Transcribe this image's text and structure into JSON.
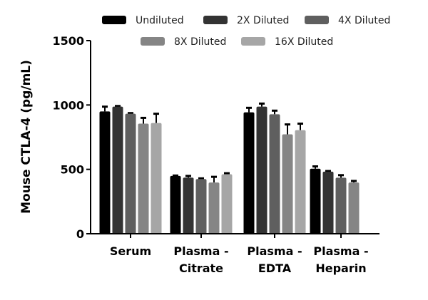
{
  "chart_data": {
    "type": "bar",
    "title": "",
    "xlabel": "",
    "ylabel": "Mouse CTLA-4 (pg/mL)",
    "ylim": [
      0,
      1500
    ],
    "yticks": [
      0,
      500,
      1000,
      1500
    ],
    "grid": false,
    "legend_placement": "top",
    "categories": [
      {
        "line1": "Serum",
        "line2": ""
      },
      {
        "line1": "Plasma -",
        "line2": "Citrate"
      },
      {
        "line1": "Plasma -",
        "line2": "EDTA"
      },
      {
        "line1": "Plasma -",
        "line2": "Heparin"
      }
    ],
    "series": [
      {
        "name": "Undiluted",
        "color": "#000000",
        "values": [
          950,
          449,
          943,
          505
        ],
        "errors": [
          37,
          3,
          35,
          18
        ]
      },
      {
        "name": "2X Diluted",
        "color": "#333333",
        "values": [
          987,
          436,
          987,
          482
        ],
        "errors": [
          5,
          13,
          24,
          5
        ]
      },
      {
        "name": "4X Diluted",
        "color": "#5f5f5f",
        "values": [
          932,
          425,
          928,
          435
        ],
        "errors": [
          5,
          5,
          28,
          20
        ]
      },
      {
        "name": "8X Diluted",
        "color": "#858585",
        "values": [
          855,
          398,
          772,
          398
        ],
        "errors": [
          45,
          44,
          77,
          12
        ]
      },
      {
        "name": "16X Diluted",
        "color": "#a6a6a6",
        "values": [
          860,
          462,
          805,
          null
        ],
        "errors": [
          72,
          8,
          50,
          null
        ]
      }
    ]
  }
}
